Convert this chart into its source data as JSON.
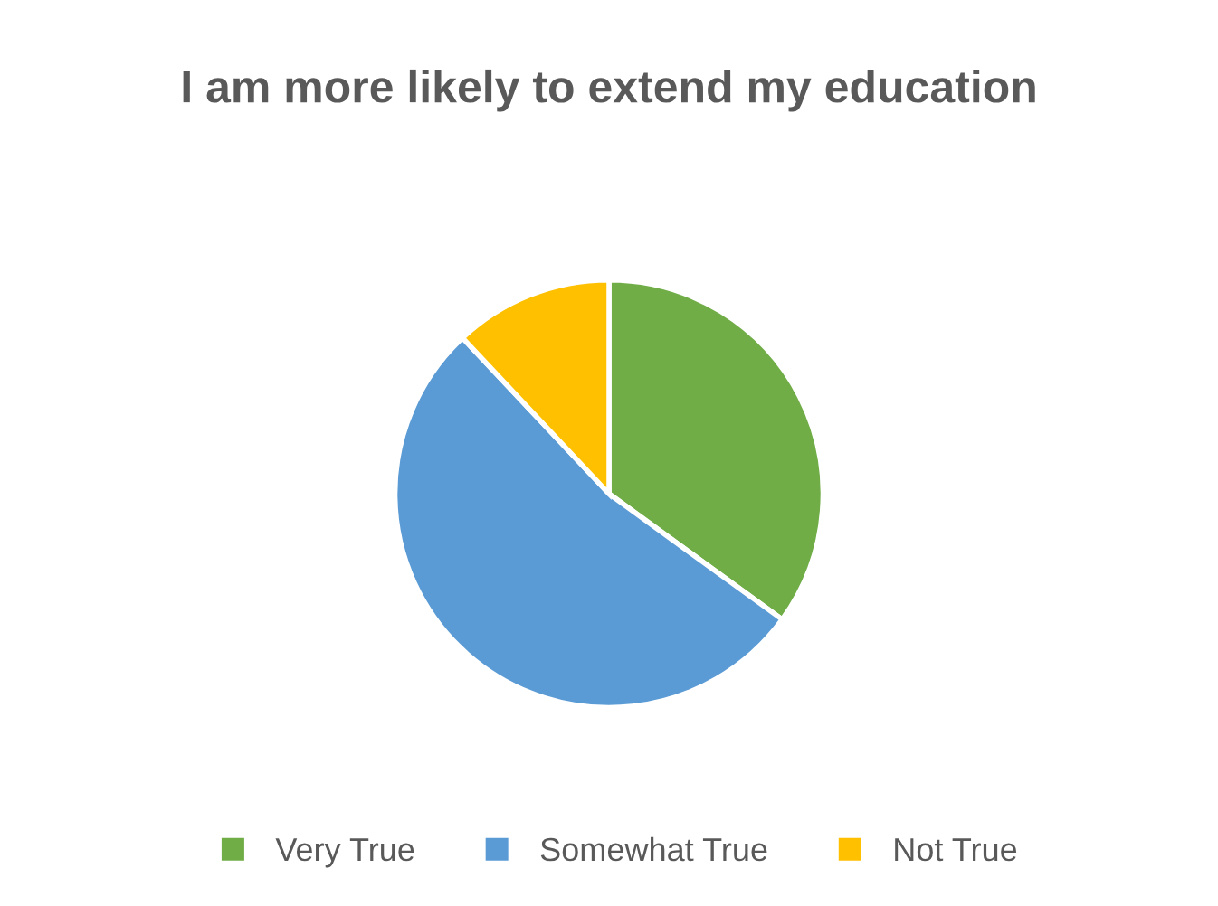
{
  "chart_data": {
    "type": "pie",
    "title": "I am more likely to extend my education",
    "categories": [
      "Very True",
      "Somewhat True",
      "Not True"
    ],
    "values": [
      35,
      53,
      12
    ],
    "colors": [
      "#70ad47",
      "#5b9bd5",
      "#ffc000"
    ],
    "legend": "bottom"
  }
}
